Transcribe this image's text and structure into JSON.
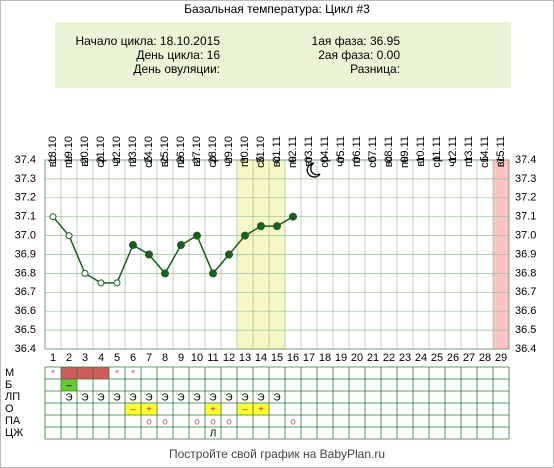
{
  "chart_data": {
    "type": "line",
    "title": "Базальная температура: Цикл #3",
    "info_left": [
      "Начало цикла: 18.10.2015",
      "День цикла: 16",
      "День овуляции:"
    ],
    "info_right": [
      "1ая фаза: 36.95",
      "2ая фаза: 0.00",
      "Разница:"
    ],
    "dates": [
      "18.10",
      "19.10",
      "20.10",
      "21.10",
      "22.10",
      "23.10",
      "24.10",
      "25.10",
      "26.10",
      "27.10",
      "28.10",
      "29.10",
      "30.10",
      "31.10",
      "01.11",
      "02.11",
      "03.11",
      "04.11",
      "05.11",
      "06.11",
      "07.11",
      "08.11",
      "09.11",
      "10.11",
      "11.11",
      "12.11",
      "13.11",
      "14.11",
      "15.11"
    ],
    "weekdays": [
      "вс",
      "пн",
      "вт",
      "ср",
      "чт",
      "пт",
      "сб",
      "вс",
      "пн",
      "вт",
      "ср",
      "чт",
      "пт",
      "сб",
      "вс",
      "пн",
      "вт",
      "ср",
      "чт",
      "пт",
      "сб",
      "вс",
      "пн",
      "вт",
      "ср",
      "чт",
      "пт",
      "сб",
      "вс"
    ],
    "categories": [
      1,
      2,
      3,
      4,
      5,
      6,
      7,
      8,
      9,
      10,
      11,
      12,
      13,
      14,
      15,
      16,
      17,
      18,
      19,
      20,
      21,
      22,
      23,
      24,
      25,
      26,
      27,
      28,
      29
    ],
    "series": [
      {
        "color": "#1b5e20",
        "values": [
          37.1,
          37.0,
          36.8,
          36.75,
          36.75,
          36.95,
          36.9,
          36.8,
          36.95,
          37.0,
          36.8,
          36.9,
          37.0,
          37.05,
          37.05,
          37.1,
          null,
          null,
          null,
          null,
          null,
          null,
          null,
          null,
          null,
          null,
          null,
          null,
          null
        ],
        "markers": [
          "open",
          "open",
          "open",
          "open",
          "open",
          "filled",
          "filled",
          "filled",
          "filled",
          "filled",
          "filled",
          "filled",
          "filled",
          "filled",
          "filled",
          "filled",
          null,
          null,
          null,
          null,
          null,
          null,
          null,
          null,
          null,
          null,
          null,
          null,
          null
        ]
      }
    ],
    "ylim": [
      36.4,
      37.4
    ],
    "yticks": [
      {
        "value": 36.4,
        "label": "36.4"
      },
      {
        "value": 36.5,
        "label": "36.5"
      },
      {
        "value": 36.6,
        "label": "36.6"
      },
      {
        "value": 36.7,
        "label": "36.7"
      },
      {
        "value": 36.8,
        "label": "36.8"
      },
      {
        "value": 36.9,
        "label": "36.9"
      },
      {
        "value": 37.0,
        "label": "37.0"
      },
      {
        "value": 37.1,
        "label": "37.1"
      },
      {
        "value": 37.2,
        "label": "37.2"
      },
      {
        "value": 37.3,
        "label": "37.3"
      },
      {
        "value": 37.4,
        "label": "37.4"
      }
    ],
    "grid": true,
    "bands": [
      {
        "from": 13,
        "to": 15,
        "color": "#f7f7c6"
      },
      {
        "from": 29,
        "to": 29,
        "color": "#f9c4c4"
      }
    ],
    "footer": "Постройте свой график на BabyPlan.ru"
  },
  "table": {
    "rows": [
      {
        "name": "М",
        "color": "#d9534f",
        "cells": [
          "*",
          null,
          null,
          null,
          "*",
          "*",
          null,
          null,
          null,
          null,
          null,
          null,
          null,
          null,
          null,
          null,
          null,
          null,
          null,
          null,
          null,
          null,
          null,
          null,
          null,
          null,
          null,
          null,
          null
        ],
        "fills": [
          null,
          "#cd5c5c",
          "#cd5c5c",
          "#cd5c5c",
          null,
          null,
          null,
          null,
          null,
          null,
          null,
          null,
          null,
          null,
          null,
          null,
          null,
          null,
          null,
          null,
          null,
          null,
          null,
          null,
          null,
          null,
          null,
          null,
          null
        ]
      },
      {
        "name": "Б",
        "color": "#000",
        "cells": [
          null,
          "–",
          null,
          null,
          null,
          null,
          null,
          null,
          null,
          null,
          null,
          null,
          null,
          null,
          null,
          null,
          null,
          null,
          null,
          null,
          null,
          null,
          null,
          null,
          null,
          null,
          null,
          null,
          null
        ],
        "fills": [
          null,
          "#66cc33",
          null,
          null,
          null,
          null,
          null,
          null,
          null,
          null,
          null,
          null,
          null,
          null,
          null,
          null,
          null,
          null,
          null,
          null,
          null,
          null,
          null,
          null,
          null,
          null,
          null,
          null,
          null
        ]
      },
      {
        "name": "ЛП",
        "color": "#000",
        "cells": [
          null,
          "Э",
          "Э",
          "Э",
          "Э",
          "Э",
          "Э",
          "Э",
          "Э",
          "Э",
          "Э",
          "Э",
          "Э",
          "Э",
          "Э",
          null,
          null,
          null,
          null,
          null,
          null,
          null,
          null,
          null,
          null,
          null,
          null,
          null,
          null
        ],
        "fills": [
          null,
          null,
          null,
          null,
          null,
          null,
          null,
          null,
          null,
          null,
          null,
          null,
          null,
          null,
          null,
          null,
          null,
          null,
          null,
          null,
          null,
          null,
          null,
          null,
          null,
          null,
          null,
          null,
          null
        ]
      },
      {
        "name": "О",
        "color": "#c0392b",
        "cells": [
          null,
          null,
          null,
          null,
          null,
          "–",
          "+",
          null,
          null,
          null,
          "+",
          null,
          "–",
          "+",
          null,
          null,
          null,
          null,
          null,
          null,
          null,
          null,
          null,
          null,
          null,
          null,
          null,
          null,
          null
        ],
        "fills": [
          null,
          null,
          null,
          null,
          null,
          "#ffff33",
          "#ffff33",
          null,
          null,
          null,
          "#ffff33",
          null,
          "#ffff33",
          "#ffff33",
          null,
          null,
          null,
          null,
          null,
          null,
          null,
          null,
          null,
          null,
          null,
          null,
          null,
          null,
          null
        ]
      },
      {
        "name": "ПА",
        "color": "#d9534f",
        "cells": [
          null,
          null,
          null,
          null,
          null,
          null,
          "o",
          "o",
          null,
          "o",
          "o",
          "o",
          null,
          null,
          null,
          "o",
          null,
          null,
          null,
          null,
          null,
          null,
          null,
          null,
          null,
          null,
          null,
          null,
          null
        ],
        "fills": [
          null,
          null,
          null,
          null,
          null,
          null,
          null,
          null,
          null,
          null,
          null,
          null,
          null,
          null,
          null,
          null,
          null,
          null,
          null,
          null,
          null,
          null,
          null,
          null,
          null,
          null,
          null,
          null,
          null
        ]
      },
      {
        "name": "ЦЖ",
        "color": "#000",
        "cells": [
          null,
          null,
          null,
          null,
          null,
          null,
          null,
          null,
          null,
          null,
          "Л",
          null,
          null,
          null,
          null,
          null,
          null,
          null,
          null,
          null,
          null,
          null,
          null,
          null,
          null,
          null,
          null,
          null,
          null
        ],
        "fills": [
          null,
          null,
          null,
          null,
          null,
          null,
          null,
          null,
          null,
          null,
          null,
          null,
          null,
          null,
          null,
          null,
          null,
          null,
          null,
          null,
          null,
          null,
          null,
          null,
          null,
          null,
          null,
          null,
          null
        ]
      }
    ]
  }
}
